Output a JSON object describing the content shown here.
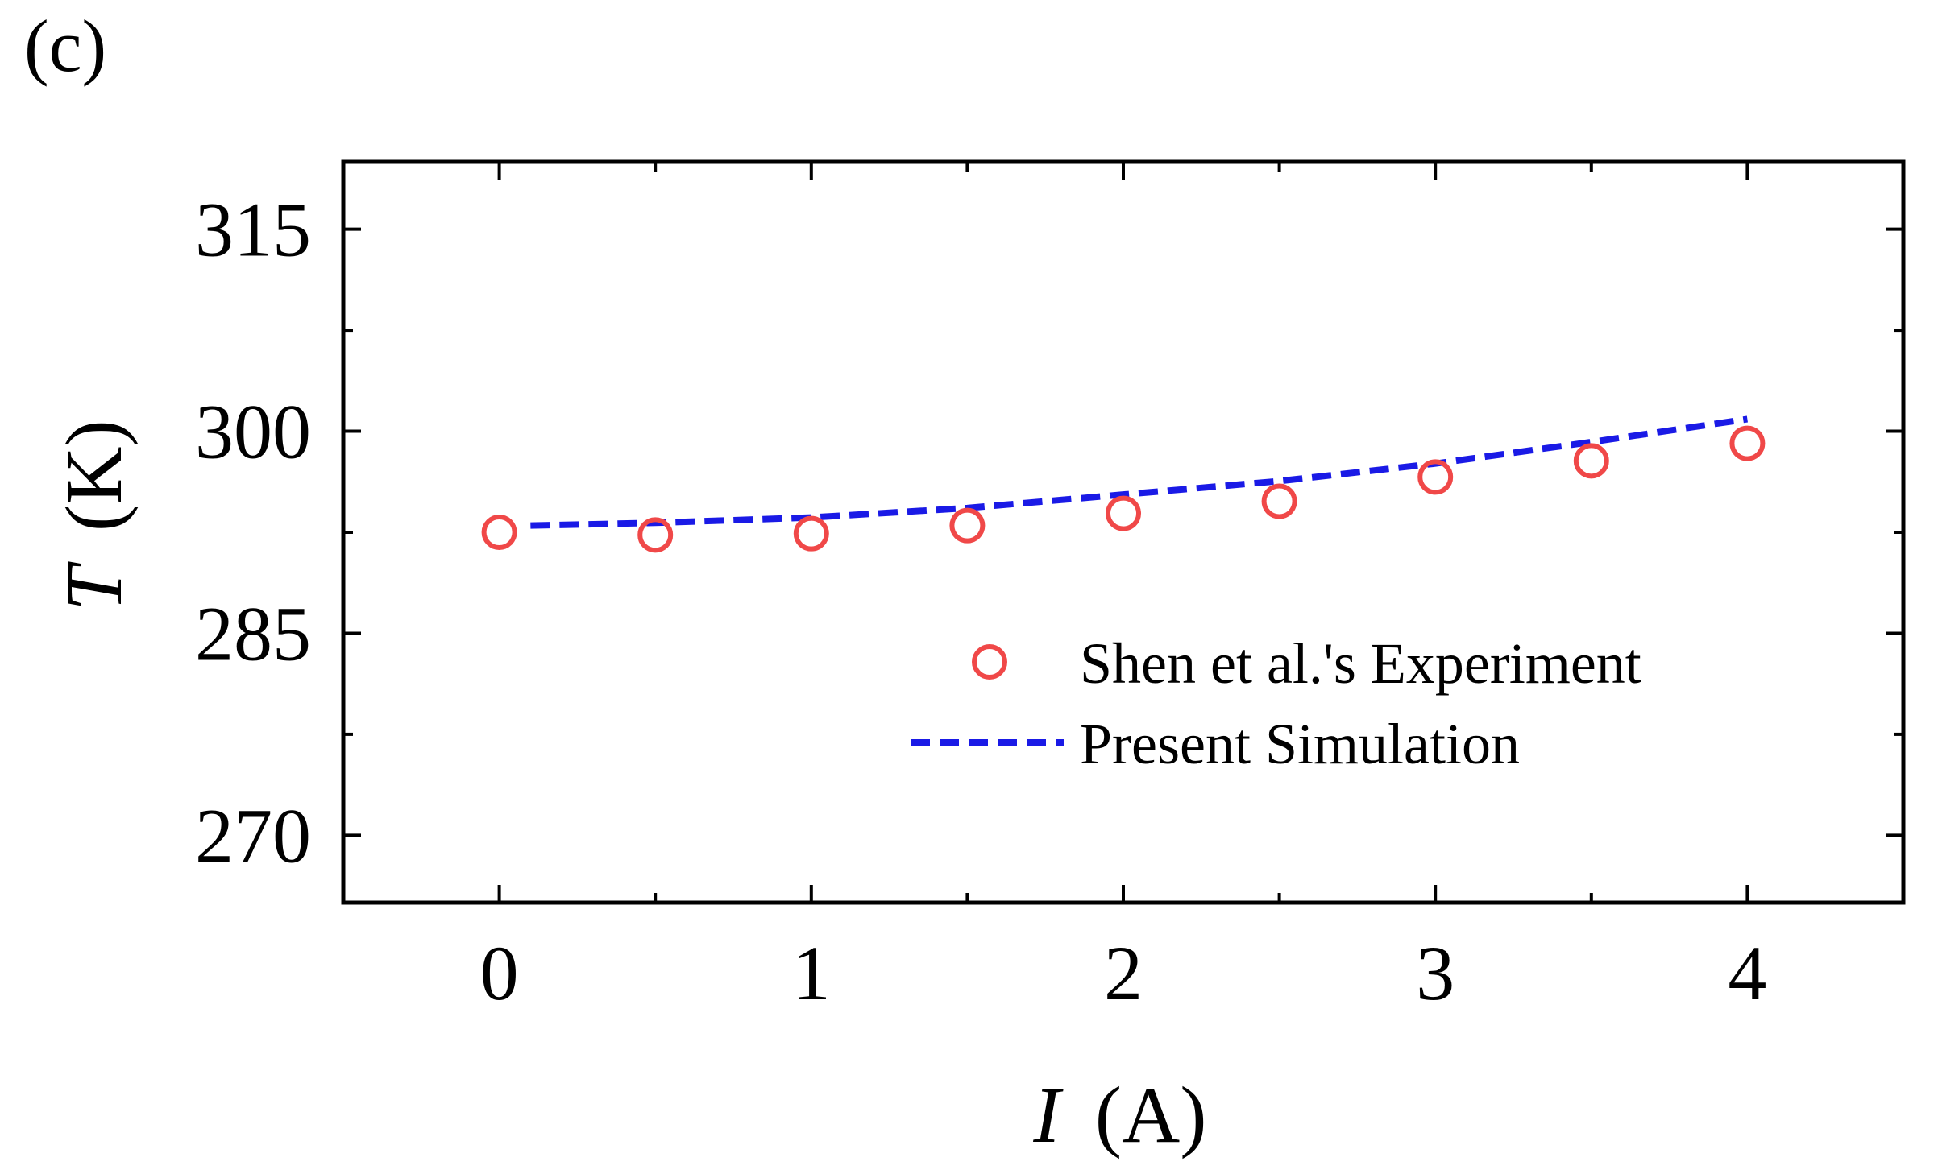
{
  "panel_label": "(c)",
  "chart_data": {
    "type": "scatter",
    "title": "",
    "xlabel": {
      "var": "I",
      "unit": "(A)"
    },
    "ylabel": {
      "var": "T",
      "unit": "(K)"
    },
    "xlim": [
      -0.5,
      4.5
    ],
    "ylim": [
      265,
      320
    ],
    "xticks": [
      0,
      1,
      2,
      3,
      4
    ],
    "xtick_labels": [
      "0",
      "1",
      "2",
      "3",
      "4"
    ],
    "xminor": [
      0.5,
      1.5,
      2.5,
      3.5
    ],
    "yticks": [
      270,
      285,
      300,
      315
    ],
    "ytick_labels": [
      "270",
      "285",
      "300",
      "315"
    ],
    "yminor": [
      277.5,
      292.5,
      307.5
    ],
    "grid": false,
    "legend_position": "lower-right",
    "series": [
      {
        "name": "Shen et al.'s Experiment",
        "kind": "scatter",
        "marker": "open-circle",
        "color": "#f04848",
        "x": [
          0,
          0.5,
          1,
          1.5,
          2,
          2.5,
          3,
          3.5,
          4
        ],
        "y": [
          292.5,
          292.3,
          292.4,
          293.0,
          293.9,
          294.8,
          296.6,
          297.8,
          299.1
        ]
      },
      {
        "name": "Present Simulation",
        "kind": "line",
        "style": "dashed",
        "color": "#1a1ae6",
        "x": [
          0.1,
          0.5,
          1,
          1.5,
          2,
          2.5,
          3,
          3.5,
          4
        ],
        "y": [
          293.0,
          293.2,
          293.6,
          294.3,
          295.3,
          296.3,
          297.6,
          299.2,
          300.9
        ]
      }
    ]
  }
}
